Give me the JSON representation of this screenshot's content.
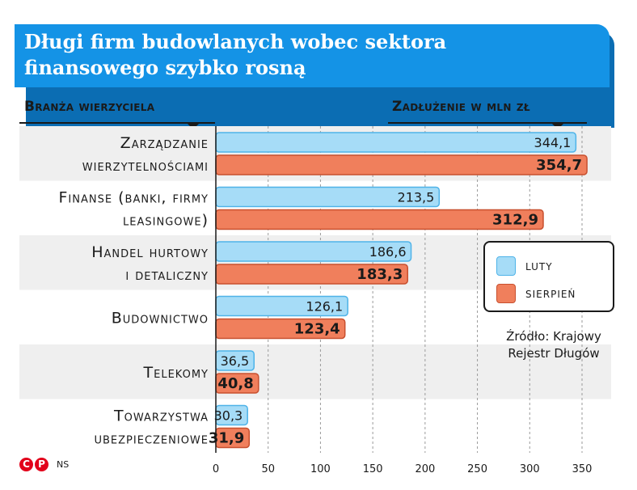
{
  "header": {
    "title": "Długi firm budowlanych wobec sektora finansowego szybko rosną",
    "left_heading": "Branża wierzyciela",
    "right_heading": "Zadłużenie w mln zł"
  },
  "legend": {
    "items": [
      {
        "label": "luty",
        "color": "#a6dcf7"
      },
      {
        "label": "sierpień",
        "color": "#f07f5c"
      }
    ]
  },
  "source": {
    "line1": "Źródło: Krajowy",
    "line2": "Rejestr Długów"
  },
  "logo": {
    "mark1": "C",
    "mark2": "P",
    "initials": "NS"
  },
  "chart_data": {
    "type": "bar",
    "orientation": "horizontal",
    "title": "Długi firm budowlanych wobec sektora finansowego szybko rosną",
    "xlabel": "Zadłużenie w mln zł",
    "ylabel": "Branża wierzyciela",
    "categories": [
      [
        "Zarządzanie",
        "wierzytelnościami"
      ],
      [
        "Finanse (banki, firmy",
        "leasingowe)"
      ],
      [
        "Handel hurtowy",
        "i detaliczny"
      ],
      [
        "Budownictwo"
      ],
      [
        "Telekomy"
      ],
      [
        "Towarzystwa",
        "ubezpieczeniowe"
      ]
    ],
    "series": [
      {
        "name": "luty",
        "values": [
          344.1,
          213.5,
          186.6,
          126.1,
          36.5,
          30.3
        ],
        "labels": [
          "344,1",
          "213,5",
          "186,6",
          "126,1",
          "36,5",
          "30,3"
        ],
        "color": "#a6dcf7",
        "stroke": "#4fb3e8"
      },
      {
        "name": "sierpień",
        "values": [
          354.7,
          312.9,
          183.3,
          123.4,
          40.8,
          31.9
        ],
        "labels": [
          "354,7",
          "312,9",
          "183,3",
          "123,4",
          "40,8",
          "31,9"
        ],
        "color": "#f07f5c",
        "stroke": "#c8502f"
      }
    ],
    "xlim": [
      0,
      350
    ],
    "xticks": [
      0,
      50,
      100,
      150,
      200,
      250,
      300,
      350
    ],
    "grid": true,
    "legend_position": "right"
  }
}
